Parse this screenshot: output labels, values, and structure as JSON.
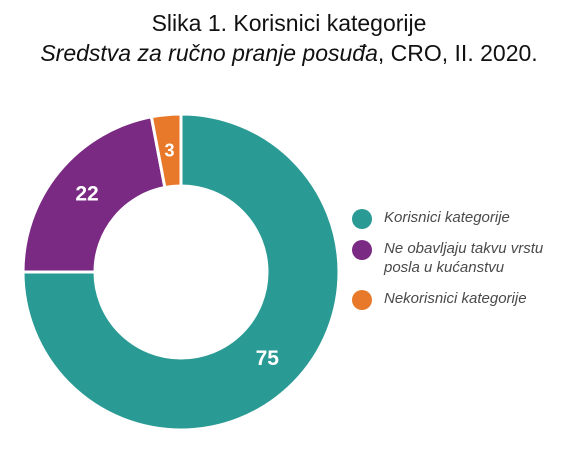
{
  "title": {
    "line1": "Slika 1. Korisnici kategorije",
    "line2_italic": "Sredstva za ručno pranje posuđa",
    "line2_rest": ", CRO, II. 2020."
  },
  "chart_data": {
    "type": "pie",
    "variant": "donut",
    "categories": [
      "Korisnici kategorije",
      "Ne obavljaju takvu vrstu posla u kućanstvu",
      "Nekorisnici kategorije"
    ],
    "values": [
      75,
      22,
      3
    ],
    "value_labels": [
      "75",
      "22",
      "3"
    ],
    "colors": [
      "#2a9a94",
      "#7b2a83",
      "#e8792b"
    ],
    "legend_position": "right",
    "start": "top",
    "direction": "clockwise"
  },
  "legend": {
    "items": [
      {
        "line1": "Korisnici kategorije",
        "line2": ""
      },
      {
        "line1": "Ne obavljaju takvu vrstu",
        "line2": "posla u kućanstvu"
      },
      {
        "line1": "Nekorisnici kategorije",
        "line2": ""
      }
    ]
  }
}
